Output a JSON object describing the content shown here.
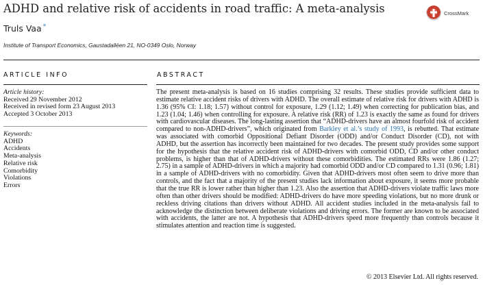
{
  "title": "ADHD and relative risk of accidents in road traffic: A meta-analysis",
  "author": {
    "name": "Truls Vaa",
    "mark": "*"
  },
  "affiliation": "Institute of Transport Economics, Gaustadalléen 21, NO-0349 Oslo, Norway",
  "crossmark": {
    "label": "CrossMark",
    "icon": "crossmark-icon"
  },
  "article_info": {
    "heading": "ARTICLE INFO",
    "history_label": "Article history:",
    "history": [
      "Received 29 November 2012",
      "Received in revised form 23 August 2013",
      "Accepted 3 October 2013"
    ],
    "keywords_label": "Keywords:",
    "keywords": [
      "ADHD",
      "Accidents",
      "Meta-analysis",
      "Relative risk",
      "Comorbidity",
      "Violations",
      "Errors"
    ]
  },
  "abstract": {
    "heading": "ABSTRACT",
    "text_before_link": "The present meta-analysis is based on 16 studies comprising 32 results. These studies provide sufficient data to estimate relative accident risks of drivers with ADHD. The overall estimate of relative risk for drivers with ADHD is 1.36 (95% CI: 1.18; 1.57) without control for exposure, 1.29 (1.12; 1.49) when correcting for publication bias, and 1.23 (1.04; 1.46) when controlling for exposure. A relative risk (RR) of 1.23 is exactly the same as found for drivers with cardiovascular diseases. The long-lasting assertion that “ADHD-drivers have an almost fourfold risk of accident compared to non-ADHD-drivers”, which originated from ",
    "link_text": "Barkley et al.’s study of 1993",
    "text_after_link": ", is rebutted. That estimate was associated with comorbid Oppositional Defiant Disorder (ODD) and/or Conduct Disorder (CD), not with ADHD, but the assertion has incorrectly been maintained for two decades. The present study provides some support for the hypothesis that the relative accident risk of ADHD-drivers with comorbid ODD, CD and/or other conduct problems, is higher than that of ADHD-drivers without these comorbidities. The estimated RRs were 1.86 (1.27; 2.75) in a sample of ADHD-drivers in which a majority had comorbid ODD and/or CD compared to 1.31 (0.96; 1.81) in a sample of ADHD-drivers with no comorbidity. Given that ADHD-drivers most often seem to drive more than controls, and the fact that a majority of the present studies lack information about exposure, it seems more probable that the true RR is lower rather than higher than 1.23. Also the assertion that ADHD-drivers violate traffic laws more often than other drivers should be modified: ADHD-drivers do have more speeding violations, but no more drunk or reckless driving citations than drivers without ADHD. All accident studies included in the meta-analysis fail to acknowledge the distinction between deliberate violations and driving errors. The former are known to be associated with accidents, the latter are not. A hypothesis that ADHD-drivers speed more frequently than controls because it stimulates attention and reaction time is suggested."
  },
  "copyright": "© 2013 Elsevier Ltd. All rights reserved.",
  "colors": {
    "link": "#2a6fa8",
    "crossmark_red": "#c8402f"
  }
}
